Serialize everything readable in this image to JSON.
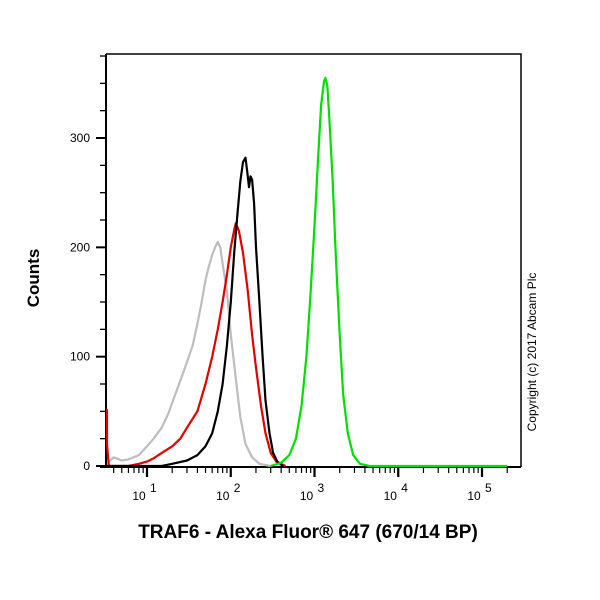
{
  "chart_data": {
    "type": "line",
    "subtype": "flow cytometry overlay histogram",
    "xlabel": "TRAF6 - Alexa Fluor® 647 (670/14 BP)",
    "ylabel": "Counts",
    "xscale": "log",
    "x_ticks": [
      "10^1",
      "10^2",
      "10^3",
      "10^4",
      "10^5"
    ],
    "x_tick_values": [
      10,
      100,
      1000,
      10000,
      100000
    ],
    "y_ticks": [
      0,
      100,
      200,
      300
    ],
    "xlim": [
      3.2,
      200000
    ],
    "ylim": [
      0,
      377
    ],
    "grid": false,
    "legend": null,
    "annotation": "Copyright (c) 2017 Abcam Plc",
    "series": [
      {
        "name": "gray",
        "color": "#bdbdbd",
        "peak_x": 70,
        "peak_count": 205,
        "points": [
          [
            3.4,
            3
          ],
          [
            4,
            8
          ],
          [
            5,
            5
          ],
          [
            6,
            6
          ],
          [
            8,
            10
          ],
          [
            10,
            18
          ],
          [
            12,
            25
          ],
          [
            15,
            35
          ],
          [
            18,
            48
          ],
          [
            20,
            58
          ],
          [
            25,
            78
          ],
          [
            30,
            95
          ],
          [
            35,
            110
          ],
          [
            40,
            130
          ],
          [
            45,
            150
          ],
          [
            50,
            170
          ],
          [
            55,
            183
          ],
          [
            60,
            193
          ],
          [
            65,
            200
          ],
          [
            70,
            205
          ],
          [
            75,
            200
          ],
          [
            80,
            185
          ],
          [
            90,
            160
          ],
          [
            100,
            120
          ],
          [
            115,
            80
          ],
          [
            130,
            45
          ],
          [
            150,
            20
          ],
          [
            180,
            8
          ],
          [
            220,
            2
          ],
          [
            300,
            0
          ]
        ]
      },
      {
        "name": "red",
        "color": "#e00000",
        "peak_x": 115,
        "peak_count": 222,
        "points": [
          [
            3.2,
            52
          ],
          [
            3.3,
            20
          ],
          [
            3.5,
            0
          ],
          [
            6,
            0
          ],
          [
            8,
            2
          ],
          [
            10,
            4
          ],
          [
            12,
            7
          ],
          [
            15,
            12
          ],
          [
            20,
            18
          ],
          [
            25,
            25
          ],
          [
            30,
            35
          ],
          [
            40,
            50
          ],
          [
            50,
            75
          ],
          [
            60,
            100
          ],
          [
            70,
            125
          ],
          [
            80,
            150
          ],
          [
            90,
            175
          ],
          [
            100,
            200
          ],
          [
            110,
            216
          ],
          [
            115,
            222
          ],
          [
            125,
            215
          ],
          [
            140,
            195
          ],
          [
            160,
            160
          ],
          [
            180,
            120
          ],
          [
            200,
            90
          ],
          [
            230,
            55
          ],
          [
            260,
            30
          ],
          [
            300,
            12
          ],
          [
            350,
            4
          ],
          [
            450,
            0
          ]
        ]
      },
      {
        "name": "black",
        "color": "#000000",
        "peak_x": 150,
        "peak_count": 282,
        "points": [
          [
            3.2,
            0
          ],
          [
            15,
            0
          ],
          [
            20,
            2
          ],
          [
            30,
            5
          ],
          [
            40,
            10
          ],
          [
            50,
            18
          ],
          [
            60,
            30
          ],
          [
            70,
            50
          ],
          [
            80,
            75
          ],
          [
            90,
            110
          ],
          [
            100,
            150
          ],
          [
            110,
            195
          ],
          [
            120,
            230
          ],
          [
            130,
            260
          ],
          [
            140,
            278
          ],
          [
            150,
            282
          ],
          [
            158,
            268
          ],
          [
            165,
            255
          ],
          [
            172,
            265
          ],
          [
            180,
            262
          ],
          [
            190,
            240
          ],
          [
            200,
            200
          ],
          [
            220,
            150
          ],
          [
            240,
            100
          ],
          [
            260,
            60
          ],
          [
            290,
            30
          ],
          [
            320,
            12
          ],
          [
            360,
            4
          ],
          [
            420,
            0
          ]
        ]
      },
      {
        "name": "green",
        "color": "#00e000",
        "peak_x": 1350,
        "peak_count": 355,
        "points": [
          [
            300,
            0
          ],
          [
            400,
            3
          ],
          [
            500,
            10
          ],
          [
            600,
            25
          ],
          [
            700,
            55
          ],
          [
            800,
            100
          ],
          [
            900,
            160
          ],
          [
            1000,
            220
          ],
          [
            1100,
            280
          ],
          [
            1200,
            330
          ],
          [
            1300,
            352
          ],
          [
            1350,
            355
          ],
          [
            1420,
            348
          ],
          [
            1500,
            320
          ],
          [
            1650,
            260
          ],
          [
            1800,
            190
          ],
          [
            2000,
            120
          ],
          [
            2200,
            65
          ],
          [
            2500,
            30
          ],
          [
            2900,
            10
          ],
          [
            3500,
            2
          ],
          [
            4500,
            0
          ],
          [
            200000,
            0
          ]
        ]
      }
    ]
  },
  "plot": {
    "y_tick_labels": [
      "0",
      "100",
      "200",
      "300"
    ],
    "x_tick_exponents": [
      "1",
      "2",
      "3",
      "4",
      "5"
    ],
    "x_tick_base": "10",
    "ylabel": "Counts",
    "xlabel": "TRAF6 - Alexa Fluor® 647 (670/14 BP)",
    "copyright": "Copyright (c) 2017 Abcam Plc"
  }
}
